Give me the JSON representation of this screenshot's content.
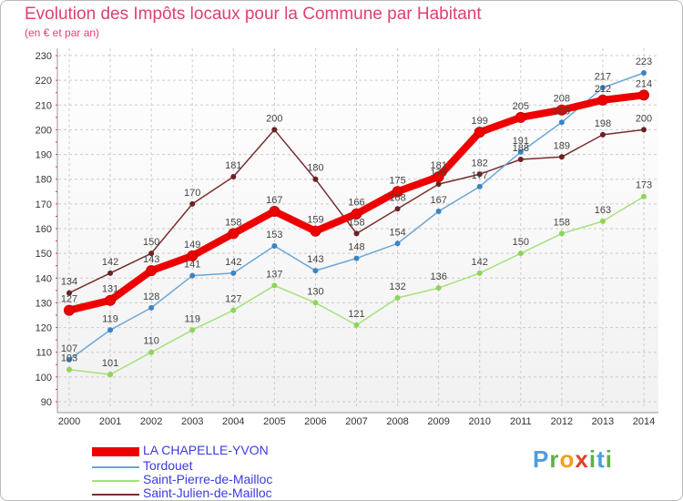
{
  "header": {
    "title": "Evolution des Impôts locaux pour la Commune par Habitant",
    "subtitle": "(en € et par an)"
  },
  "chart_data": {
    "type": "line",
    "title": "Evolution des Impôts locaux pour la Commune par Habitant",
    "subtitle": "(en € et par an)",
    "xlabel": "",
    "ylabel": "",
    "x": [
      "2000",
      "2001",
      "2002",
      "2003",
      "2004",
      "2005",
      "2006",
      "2007",
      "2008",
      "2009",
      "2010",
      "2011",
      "2012",
      "2013",
      "2014"
    ],
    "ylim": [
      90,
      230
    ],
    "yticks": [
      90,
      100,
      110,
      120,
      130,
      140,
      150,
      160,
      170,
      180,
      190,
      200,
      210,
      220,
      230
    ],
    "grid": true,
    "legend_position": "bottom-left",
    "series": [
      {
        "name": "LA CHAPELLE-YVON",
        "color": "#ee0000",
        "marker_color": "#ee0000",
        "width": 8,
        "values": [
          127,
          131,
          143,
          149,
          158,
          167,
          159,
          166,
          175,
          181,
          199,
          205,
          208,
          212,
          214
        ]
      },
      {
        "name": "Tordouet",
        "color": "#6aa6d6",
        "marker_color": "#3b83c4",
        "width": 1.5,
        "values": [
          107,
          119,
          128,
          141,
          142,
          153,
          143,
          148,
          154,
          167,
          177,
          191,
          203,
          217,
          223
        ]
      },
      {
        "name": "Saint-Pierre-de-Mailloc",
        "color": "#a8e07a",
        "marker_color": "#8dd45a",
        "width": 1.5,
        "values": [
          103,
          101,
          110,
          119,
          127,
          137,
          130,
          121,
          132,
          136,
          142,
          150,
          158,
          163,
          173
        ]
      },
      {
        "name": "Saint-Julien-de-Mailloc",
        "color": "#7a2e2e",
        "marker_color": "#6b2222",
        "width": 1.5,
        "values": [
          134,
          142,
          150,
          170,
          181,
          200,
          180,
          158,
          168,
          178,
          182,
          188,
          189,
          198,
          200
        ]
      }
    ],
    "point_labels": [
      {
        "x": "2000",
        "value": 127
      },
      {
        "x": "2001",
        "value": 131
      },
      {
        "x": "2002",
        "value": 143
      },
      {
        "x": "2003",
        "value": 149
      },
      {
        "x": "2004",
        "value": 158
      },
      {
        "x": "2005",
        "value": 167
      },
      {
        "x": "2006",
        "value": 159
      },
      {
        "x": "2007",
        "value": 166
      },
      {
        "x": "2008",
        "value": 175
      },
      {
        "x": "2009",
        "value": 181
      },
      {
        "x": "2010",
        "value": 199
      },
      {
        "x": "2011",
        "value": 205
      },
      {
        "x": "2012",
        "value": 208
      },
      {
        "x": "2013",
        "value": 212
      },
      {
        "x": "2014",
        "value": 214
      },
      {
        "x": "2000",
        "value": 107
      },
      {
        "x": "2001",
        "value": 119
      },
      {
        "x": "2002",
        "value": 128
      },
      {
        "x": "2003",
        "value": 141
      },
      {
        "x": "2004",
        "value": 142
      },
      {
        "x": "2005",
        "value": 153
      },
      {
        "x": "2006",
        "value": 143
      },
      {
        "x": "2007",
        "value": 148
      },
      {
        "x": "2008",
        "value": 154
      },
      {
        "x": "2009",
        "value": 167
      },
      {
        "x": "2010",
        "value": 177
      },
      {
        "x": "2011",
        "value": 191
      },
      {
        "x": "2012",
        "value": 203
      },
      {
        "x": "2013",
        "value": 217
      },
      {
        "x": "2014",
        "value": 223
      },
      {
        "x": "2000",
        "value": 103
      },
      {
        "x": "2001",
        "value": 101
      },
      {
        "x": "2002",
        "value": 110
      },
      {
        "x": "2003",
        "value": 119
      },
      {
        "x": "2004",
        "value": 127
      },
      {
        "x": "2005",
        "value": 137
      },
      {
        "x": "2006",
        "value": 130
      },
      {
        "x": "2007",
        "value": 121
      },
      {
        "x": "2008",
        "value": 132
      },
      {
        "x": "2009",
        "value": 136
      },
      {
        "x": "2010",
        "value": 142
      },
      {
        "x": "2011",
        "value": 150
      },
      {
        "x": "2012",
        "value": 158
      },
      {
        "x": "2013",
        "value": 163
      },
      {
        "x": "2014",
        "value": 173
      },
      {
        "x": "2000",
        "value": 134
      },
      {
        "x": "2001",
        "value": 142
      },
      {
        "x": "2002",
        "value": 150
      },
      {
        "x": "2003",
        "value": 170
      },
      {
        "x": "2004",
        "value": 181
      },
      {
        "x": "2005",
        "value": 200
      },
      {
        "x": "2006",
        "value": 180
      },
      {
        "x": "2007",
        "value": 158
      },
      {
        "x": "2008",
        "value": 168
      },
      {
        "x": "2009",
        "value": 178
      },
      {
        "x": "2010",
        "value": 182
      },
      {
        "x": "2011",
        "value": 188
      },
      {
        "x": "2012",
        "value": 189
      },
      {
        "x": "2013",
        "value": 198
      },
      {
        "x": "2014",
        "value": 200
      }
    ]
  },
  "legend": {
    "items": [
      {
        "label": "LA CHAPELLE-YVON",
        "color": "#ee0000"
      },
      {
        "label": "Tordouet",
        "color": "#6aa6d6"
      },
      {
        "label": "Saint-Pierre-de-Mailloc",
        "color": "#a8e07a"
      },
      {
        "label": "Saint-Julien-de-Mailloc",
        "color": "#7a2e2e"
      }
    ]
  },
  "logo": {
    "text": "Proxiti",
    "parts": [
      "P",
      "r",
      "o",
      "x",
      "i",
      "t",
      "i"
    ]
  },
  "colors": {
    "title": "#e0406e",
    "grid": "#cccccc",
    "axis_text": "#333333",
    "point_label": "#444444",
    "legend_text": "#3b3bdb"
  }
}
